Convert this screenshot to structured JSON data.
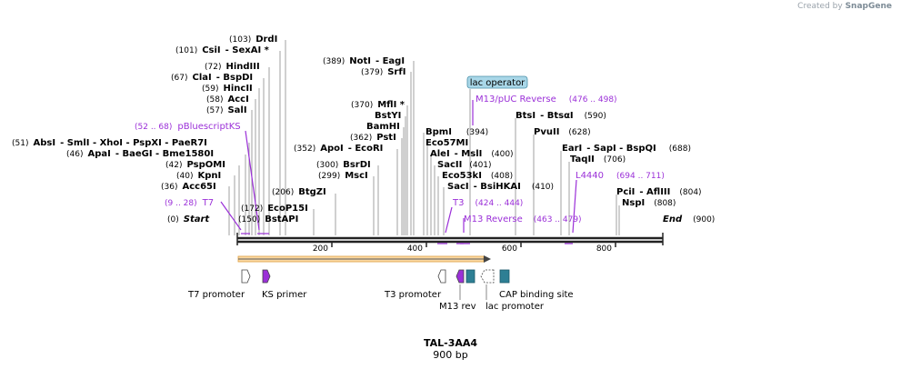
{
  "credit": {
    "prefix": "Created by",
    "brand": "SnapGene"
  },
  "sequence": {
    "name": "TAL-3AA4",
    "length_label": "900 bp",
    "length": 900
  },
  "ruler_ticks": [
    "200",
    "400",
    "600",
    "800"
  ],
  "sites": [
    {
      "name": "DrdI",
      "pos": "(103)"
    },
    {
      "name": "CsiI",
      "pos": "(101)",
      "extra": "- SexAI *"
    },
    {
      "name": "HindIII",
      "pos": "(72)"
    },
    {
      "name": "ClaI",
      "pos": "(67)",
      "extra": "- BspDI"
    },
    {
      "name": "HincII",
      "pos": "(59)"
    },
    {
      "name": "AccI",
      "pos": "(58)"
    },
    {
      "name": "SalI",
      "pos": "(57)"
    },
    {
      "name": "AbsI",
      "pos": "(51)",
      "extra": "- SmlI  - XhoI  - PspXI  - PaeR7I"
    },
    {
      "name": "ApaI",
      "pos": "(46)",
      "extra": "- BaeGI  - Bme1580I"
    },
    {
      "name": "PspOMI",
      "pos": "(42)"
    },
    {
      "name": "KpnI",
      "pos": "(40)"
    },
    {
      "name": "Acc65I",
      "pos": "(36)"
    },
    {
      "name": "BtgZI",
      "pos": "(206)"
    },
    {
      "name": "EcoP15I",
      "pos": "(172)"
    },
    {
      "name": "BstAPI",
      "pos": "(150)"
    },
    {
      "name": "Start",
      "pos": "(0)"
    },
    {
      "name": "NotI",
      "pos": "(389)",
      "extra": "- EagI"
    },
    {
      "name": "SrfI",
      "pos": "(379)"
    },
    {
      "name": "MflI *",
      "pos": "(370)"
    },
    {
      "name": "BstYI",
      "pos": ""
    },
    {
      "name": "BamHI",
      "pos": ""
    },
    {
      "name": "PstI",
      "pos": "(362)"
    },
    {
      "name": "ApoI",
      "pos": "(352)",
      "extra": "- EcoRI"
    },
    {
      "name": "BsrDI",
      "pos": "(300)"
    },
    {
      "name": "MscI",
      "pos": "(299)"
    },
    {
      "name": "BpmI",
      "pos": "(394)"
    },
    {
      "name": "Eco57MI",
      "pos": ""
    },
    {
      "name": "AleI",
      "pos": "(400)",
      "extra": "- MslI"
    },
    {
      "name": "SacII",
      "pos": "(401)"
    },
    {
      "name": "Eco53kI",
      "pos": "(408)"
    },
    {
      "name": "SacI",
      "pos": "(410)",
      "extra": "- BsiHKAI"
    },
    {
      "name": "BtsI",
      "pos": "(590)",
      "extra": "- BtsαI"
    },
    {
      "name": "PvuII",
      "pos": "(628)"
    },
    {
      "name": "EarI",
      "pos": "(688)",
      "extra": "- SapI  - BspQI"
    },
    {
      "name": "TaqII",
      "pos": "(706)"
    },
    {
      "name": "PciI",
      "pos": "(804)",
      "extra": "- AflIII"
    },
    {
      "name": "NspI",
      "pos": "(808)"
    },
    {
      "name": "End",
      "pos": "(900)"
    }
  ],
  "primers": [
    {
      "name": "pBluescriptKS",
      "range": "(52 .. 68)"
    },
    {
      "name": "T7",
      "range": "(9 .. 28)"
    },
    {
      "name": "M13/pUC Reverse",
      "range": "(476 .. 498)"
    },
    {
      "name": "T3",
      "range": "(424 .. 444)"
    },
    {
      "name": "M13 Reverse",
      "range": "(463 .. 479)"
    },
    {
      "name": "L4440",
      "range": "(694 .. 711)"
    }
  ],
  "features": [
    {
      "name": "T7 promoter"
    },
    {
      "name": "KS primer"
    },
    {
      "name": "T3 promoter"
    },
    {
      "name": "M13 rev"
    },
    {
      "name": "lac promoter"
    },
    {
      "name": "CAP binding site"
    },
    {
      "name": "lac operator"
    }
  ],
  "colors": {
    "primer": "#9b30d8",
    "enzyme": "#000000",
    "feature_teal": "#2e7f94",
    "lac_operator_fill": "#a9d7e8",
    "orf": "#f5a623",
    "line": "#8a8a8a"
  }
}
